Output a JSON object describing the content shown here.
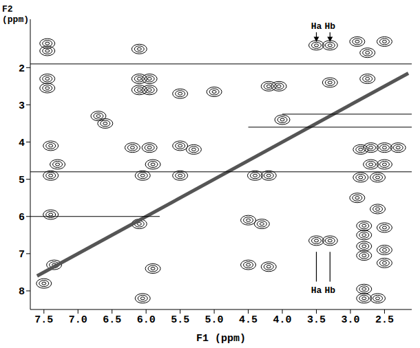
{
  "chart_data": {
    "type": "contour",
    "x_label": "F1 (ppm)",
    "y_label": "F2 (ppm)",
    "xlim": [
      7.7,
      2.1
    ],
    "ylim": [
      8.5,
      0.7
    ],
    "xticks": [
      7.5,
      {
        "value": 7,
        "label": "7.0"
      },
      6.5,
      {
        "value": 6,
        "label": "6.0"
      },
      5.5,
      {
        "value": 5,
        "label": "5.0"
      },
      4.5,
      {
        "value": 4,
        "label": "4.0"
      },
      3.5,
      {
        "value": 3,
        "label": "3.0"
      },
      2.5
    ],
    "yticks": [
      2,
      3,
      4,
      5,
      6,
      7,
      8
    ],
    "grid": false,
    "series": [
      {
        "type": "scatter",
        "marker": "contour",
        "color": "#000000",
        "x": [
          7.45,
          7.45,
          6.1,
          3.5,
          3.3,
          2.9,
          2.5,
          2.75,
          7.45,
          7.45,
          6.1,
          5.95,
          6.1,
          5.95,
          5.5,
          5.0,
          4.2,
          4.05,
          3.3,
          2.75,
          6.7,
          6.6,
          4.0,
          7.4,
          6.2,
          5.95,
          5.5,
          5.3,
          2.85,
          2.7,
          2.5,
          2.3,
          7.3,
          5.9,
          2.7,
          2.5,
          7.4,
          6.05,
          5.5,
          4.4,
          4.2,
          2.85,
          2.6,
          2.9,
          2.6,
          7.4,
          6.1,
          4.5,
          4.3,
          2.8,
          2.5,
          2.8,
          3.5,
          3.3,
          2.8,
          2.5,
          2.8,
          2.5,
          7.35,
          4.5,
          4.2,
          5.9,
          2.8,
          2.8,
          2.6,
          6.05,
          7.5
        ],
        "values": [
          1.35,
          1.55,
          1.5,
          1.4,
          1.4,
          1.3,
          1.3,
          1.6,
          2.3,
          2.55,
          2.3,
          2.3,
          2.6,
          2.6,
          2.7,
          2.65,
          2.5,
          2.5,
          2.4,
          2.3,
          3.3,
          3.5,
          3.4,
          4.1,
          4.15,
          4.15,
          4.1,
          4.2,
          4.2,
          4.15,
          4.15,
          4.15,
          4.6,
          4.6,
          4.6,
          4.6,
          4.9,
          4.9,
          4.9,
          4.9,
          4.9,
          4.95,
          4.95,
          5.5,
          5.8,
          5.95,
          6.2,
          6.1,
          6.2,
          6.25,
          6.3,
          6.5,
          6.65,
          6.65,
          6.8,
          6.9,
          7.05,
          7.25,
          7.3,
          7.3,
          7.35,
          7.4,
          7.95,
          8.2,
          8.2,
          8.2,
          7.8
        ]
      },
      {
        "type": "line",
        "line_style": "thick",
        "color": "#555555",
        "x": [
          7.6,
          2.15
        ],
        "values": [
          7.6,
          2.15
        ]
      },
      {
        "type": "line",
        "line_style": "solid",
        "color": "#000000",
        "x": [
          7.7,
          2.1
        ],
        "values": [
          1.9,
          1.9
        ]
      },
      {
        "type": "line",
        "line_style": "solid",
        "color": "#000000",
        "x": [
          7.7,
          2.1
        ],
        "values": [
          4.8,
          4.8
        ]
      },
      {
        "type": "line",
        "line_style": "solid",
        "color": "#000000",
        "x": [
          7.7,
          5.8
        ],
        "values": [
          6.0,
          6.0
        ]
      },
      {
        "type": "line",
        "line_style": "solid",
        "color": "#000000",
        "x": [
          4.0,
          2.1
        ],
        "values": [
          3.25,
          3.25
        ]
      },
      {
        "type": "line",
        "line_style": "solid",
        "color": "#000000",
        "x": [
          4.5,
          2.1
        ],
        "values": [
          3.6,
          3.6
        ]
      }
    ],
    "annotations": [
      {
        "text": "Ha",
        "x": 3.5,
        "y": 0.9,
        "arrow": [
          1.05,
          1.3
        ],
        "marker": "arrow"
      },
      {
        "text": "Hb",
        "x": 3.3,
        "y": 0.9,
        "arrow": [
          1.05,
          1.3
        ],
        "marker": "arrow"
      },
      {
        "text": "Ha",
        "x": 3.5,
        "y": 8.0,
        "arrow": [
          7.75,
          6.95
        ],
        "marker": "none"
      },
      {
        "text": "Hb",
        "x": 3.3,
        "y": 8.0,
        "arrow": [
          7.75,
          6.95
        ],
        "marker": "none"
      }
    ]
  }
}
